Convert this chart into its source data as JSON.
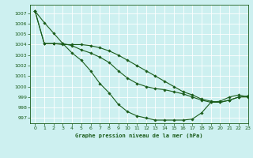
{
  "title": "Graphe pression niveau de la mer (hPa)",
  "bg_color": "#cdf0f0",
  "line_color": "#1a5c1a",
  "grid_color": "#ffffff",
  "xlim": [
    -0.5,
    23
  ],
  "ylim": [
    996.5,
    1007.8
  ],
  "yticks": [
    997,
    998,
    999,
    1000,
    1001,
    1002,
    1003,
    1004,
    1005,
    1006,
    1007
  ],
  "xticks": [
    0,
    1,
    2,
    3,
    4,
    5,
    6,
    7,
    8,
    9,
    10,
    11,
    12,
    13,
    14,
    15,
    16,
    17,
    18,
    19,
    20,
    21,
    22,
    23
  ],
  "series": [
    [
      1007.2,
      1006.1,
      1005.1,
      1004.1,
      1003.2,
      1002.5,
      1001.5,
      1000.3,
      999.4,
      998.3,
      997.6,
      997.2,
      997.0,
      996.8,
      996.8,
      996.8,
      996.8,
      996.9,
      997.5,
      998.5,
      998.6,
      999.0,
      999.2,
      999.0
    ],
    [
      1007.2,
      1004.1,
      1004.1,
      1004.1,
      1003.9,
      1003.5,
      1003.2,
      1002.8,
      1002.3,
      1001.5,
      1000.8,
      1000.3,
      1000.0,
      999.8,
      999.7,
      999.5,
      999.3,
      999.0,
      998.7,
      998.5,
      998.5,
      998.7,
      999.0,
      999.0
    ],
    [
      1007.2,
      1004.1,
      1004.1,
      1004.0,
      1004.0,
      1004.0,
      1003.9,
      1003.7,
      1003.4,
      1003.0,
      1002.5,
      1002.0,
      1001.5,
      1001.0,
      1000.5,
      1000.0,
      999.5,
      999.2,
      998.8,
      998.6,
      998.5,
      998.7,
      999.0,
      999.1
    ]
  ]
}
